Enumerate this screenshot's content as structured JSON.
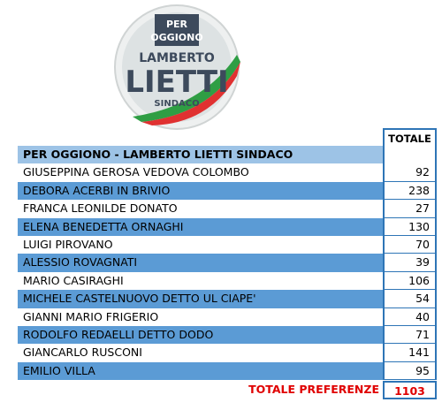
{
  "logo": {
    "badge": [
      "PER",
      "OGGIONO"
    ],
    "first_name": "LAMBERTO",
    "last_name": "LIETTI",
    "role": "SINDACO"
  },
  "table": {
    "total_header": "TOTALE",
    "list_title": "PER OGGIONO - LAMBERTO LIETTI SINDACO",
    "rows": [
      [
        "GIUSEPPINA GEROSA VEDOVA COLOMBO",
        92
      ],
      [
        "DEBORA ACERBI IN BRIVIO",
        238
      ],
      [
        "FRANCA LEONILDE DONATO",
        27
      ],
      [
        "ELENA BENEDETTA ORNAGHI",
        130
      ],
      [
        "LUIGI PIROVANO",
        70
      ],
      [
        "ALESSIO ROVAGNATI",
        39
      ],
      [
        "MARIO CASIRAGHI",
        106
      ],
      [
        "MICHELE CASTELNUOVO DETTO UL CIAPE'",
        54
      ],
      [
        "GIANNI MARIO FRIGERIO",
        40
      ],
      [
        "RODOLFO REDAELLI DETTO DODO",
        71
      ],
      [
        "GIANCARLO RUSCONI",
        141
      ],
      [
        "EMILIO VILLA",
        95
      ]
    ],
    "total_label": "TOTALE PREFERENZE",
    "total_value": 1103
  }
}
